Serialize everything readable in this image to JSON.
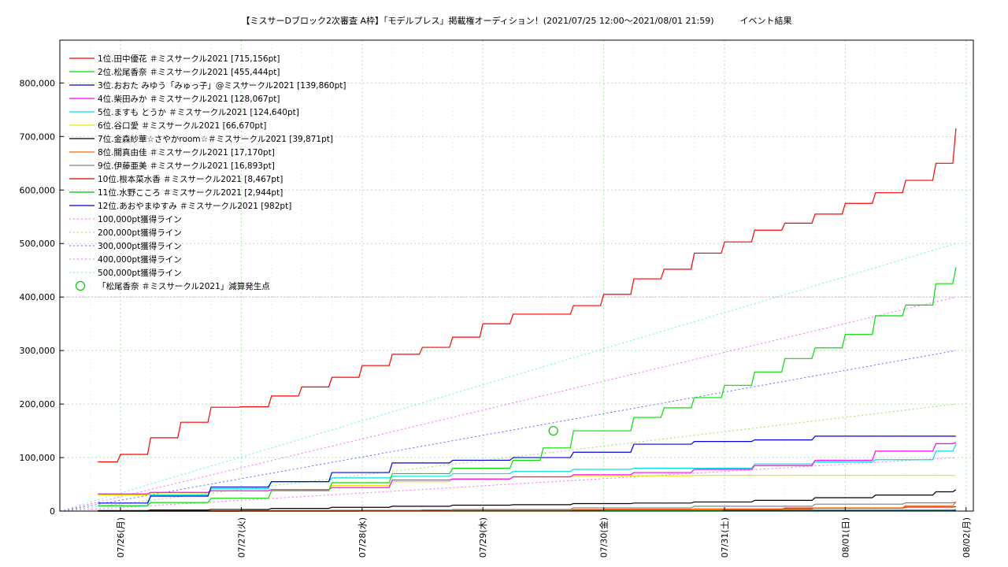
{
  "chart_data": {
    "type": "line",
    "title": "【ミスサーDブロック2次審査 A枠】「モデルプレス」掲載権オーディション！(2021/07/25 12:00〜2021/08/01 21:59)　　　イベント結果",
    "xlabel": "",
    "ylabel": "",
    "x_ticks": [
      "07/26(月)",
      "07/27(火)",
      "07/28(水)",
      "07/29(木)",
      "07/30(金)",
      "07/31(土)",
      "08/01(日)",
      "08/02(月)"
    ],
    "x_range": [
      "2021-07-25 12:00",
      "2021-08-02 02:00"
    ],
    "ylim": [
      0,
      880000
    ],
    "y_ticks": [
      "0",
      "100,000",
      "200,000",
      "300,000",
      "400,000",
      "500,000",
      "600,000",
      "700,000",
      "800,000"
    ],
    "grid": true,
    "legend_position": "top-left",
    "series": [
      {
        "name": "1位.田中優花 ＃ミスサークル2021 [715,156pt]",
        "color": "#ff0000",
        "x": [
          "07/25 19:30",
          "07/26 00:00",
          "07/26 06:00",
          "07/26 12:00",
          "07/26 18:00",
          "07/27 00:00",
          "07/27 06:00",
          "07/27 12:00",
          "07/27 18:00",
          "07/28 00:00",
          "07/28 06:00",
          "07/28 12:00",
          "07/28 18:00",
          "07/29 00:00",
          "07/29 06:00",
          "07/29 12:00",
          "07/29 18:00",
          "07/30 00:00",
          "07/30 06:00",
          "07/30 12:00",
          "07/30 18:00",
          "07/31 00:00",
          "07/31 06:00",
          "07/31 12:00",
          "07/31 18:00",
          "08/01 00:00",
          "08/01 06:00",
          "08/01 12:00",
          "08/01 18:00",
          "08/01 21:59"
        ],
        "values": [
          92000,
          106000,
          137000,
          166000,
          194000,
          195000,
          215000,
          232000,
          250000,
          272000,
          293000,
          306000,
          325000,
          350000,
          368000,
          368000,
          384000,
          405000,
          434000,
          452000,
          482000,
          503000,
          525000,
          538000,
          555000,
          575000,
          595000,
          618000,
          650000,
          715156
        ]
      },
      {
        "name": "2位.松尾香奈 ＃ミスサークル2021 [455,444pt]",
        "color": "#00e000",
        "x": [
          "07/25 19:30",
          "07/26 06:00",
          "07/26 18:00",
          "07/27 06:00",
          "07/27 18:00",
          "07/28 06:00",
          "07/28 18:00",
          "07/29 06:00",
          "07/29 12:00",
          "07/29 18:00",
          "07/30 00:00",
          "07/30 06:00",
          "07/30 12:00",
          "07/30 18:00",
          "07/31 00:00",
          "07/31 06:00",
          "07/31 12:00",
          "07/31 18:00",
          "08/01 00:00",
          "08/01 06:00",
          "08/01 12:00",
          "08/01 18:00",
          "08/01 21:59"
        ],
        "values": [
          10000,
          16000,
          24000,
          38000,
          53000,
          70000,
          80000,
          95000,
          118000,
          150000,
          150000,
          175000,
          193000,
          212000,
          235000,
          260000,
          285000,
          305000,
          330000,
          365000,
          385000,
          425000,
          455444
        ]
      },
      {
        "name": "3位.おおた みゆう「みゅっ子」@ミスサークル2021 [139,860pt]",
        "color": "#0000e0",
        "x": [
          "07/25 19:30",
          "07/26 06:00",
          "07/26 18:00",
          "07/27 06:00",
          "07/27 18:00",
          "07/28 06:00",
          "07/28 18:00",
          "07/29 06:00",
          "07/29 18:00",
          "07/30 06:00",
          "07/30 18:00",
          "07/31 06:00",
          "07/31 18:00",
          "08/01 06:00",
          "08/01 18:00",
          "08/01 21:59"
        ],
        "values": [
          15000,
          28000,
          45000,
          55000,
          72000,
          90000,
          95000,
          100000,
          110000,
          125000,
          130000,
          133000,
          140000,
          140000,
          140000,
          139860
        ]
      },
      {
        "name": "4位.柴田みか ＃ミスサークル2021 [128,067pt]",
        "color": "#ff00ff",
        "x": [
          "07/25 19:30",
          "07/26 06:00",
          "07/26 18:00",
          "07/27 06:00",
          "07/27 18:00",
          "07/28 06:00",
          "07/28 18:00",
          "07/29 06:00",
          "07/29 18:00",
          "07/30 06:00",
          "07/30 18:00",
          "07/31 06:00",
          "07/31 18:00",
          "08/01 06:00",
          "08/01 18:00",
          "08/01 21:59"
        ],
        "values": [
          32000,
          35000,
          38000,
          40000,
          44000,
          58000,
          60000,
          64000,
          68000,
          72000,
          78000,
          85000,
          95000,
          112000,
          126000,
          128067
        ]
      },
      {
        "name": "5位.ますも とうか ＃ミスサークル2021 [124,640pt]",
        "color": "#00e0e0",
        "x": [
          "07/25 19:30",
          "07/26 06:00",
          "07/26 18:00",
          "07/27 06:00",
          "07/27 18:00",
          "07/28 06:00",
          "07/28 18:00",
          "07/29 06:00",
          "07/29 18:00",
          "07/30 06:00",
          "07/30 18:00",
          "07/31 06:00",
          "07/31 18:00",
          "08/01 06:00",
          "08/01 18:00",
          "08/01 21:59"
        ],
        "values": [
          10000,
          30000,
          42000,
          55000,
          62000,
          65000,
          70000,
          74000,
          78000,
          80000,
          80000,
          88000,
          92000,
          96000,
          112000,
          124640
        ]
      },
      {
        "name": "6位.谷口愛 ＃ミスサークル2021 [66,670pt]",
        "color": "#e8e800",
        "x": [
          "07/25 19:30",
          "07/26 06:00",
          "07/26 18:00",
          "07/27 06:00",
          "07/27 18:00",
          "07/28 06:00",
          "07/28 18:00",
          "07/29 06:00",
          "07/29 18:00",
          "07/30 06:00",
          "07/30 18:00",
          "07/31 06:00",
          "07/31 18:00",
          "08/01 06:00",
          "08/01 18:00",
          "08/01 21:59"
        ],
        "values": [
          30000,
          34000,
          38000,
          40000,
          48000,
          55000,
          60000,
          64000,
          66000,
          66000,
          66670,
          66670,
          66670,
          66670,
          66670,
          66670
        ]
      },
      {
        "name": "7位.金森紗華☆さやかroom☆＃ミスサークル2021 [39,871pt]",
        "color": "#000000",
        "x": [
          "07/25 19:30",
          "07/26 06:00",
          "07/26 18:00",
          "07/27 06:00",
          "07/27 18:00",
          "07/28 06:00",
          "07/28 18:00",
          "07/29 06:00",
          "07/29 18:00",
          "07/30 06:00",
          "07/30 18:00",
          "07/31 06:00",
          "07/31 18:00",
          "08/01 06:00",
          "08/01 18:00",
          "08/01 21:59"
        ],
        "values": [
          1000,
          2000,
          3000,
          5000,
          7000,
          9000,
          11000,
          12000,
          14000,
          15000,
          17000,
          20000,
          25000,
          30000,
          36000,
          39871
        ]
      },
      {
        "name": "8位.關真由佳 ＃ミスサークル2021 [17,170pt]",
        "color": "#ff6600",
        "x": [
          "07/25 19:30",
          "07/26 18:00",
          "07/27 18:00",
          "07/28 18:00",
          "07/29 18:00",
          "07/30 18:00",
          "07/31 18:00",
          "08/01 12:00",
          "08/01 21:59"
        ],
        "values": [
          0,
          500,
          1000,
          2000,
          3000,
          4000,
          6000,
          10000,
          17170
        ]
      },
      {
        "name": "9位.伊藤亜美 ＃ミスサークル2021 [16,893pt]",
        "color": "#808080",
        "x": [
          "07/25 19:30",
          "07/26 18:00",
          "07/27 18:00",
          "07/28 18:00",
          "07/29 18:00",
          "07/30 18:00",
          "07/31 18:00",
          "08/01 12:00",
          "08/01 21:59"
        ],
        "values": [
          0,
          500,
          1500,
          3000,
          6000,
          9000,
          13000,
          15500,
          16893
        ]
      },
      {
        "name": "10位.根本菜水香 ＃ミスサークル2021 [8,467pt]",
        "color": "#e00000",
        "x": [
          "07/25 19:30",
          "07/27 00:00",
          "07/28 12:00",
          "07/30 00:00",
          "07/31 12:00",
          "08/01 12:00",
          "08/01 21:59"
        ],
        "values": [
          0,
          1000,
          2000,
          3500,
          5500,
          7500,
          8467
        ]
      },
      {
        "name": "11位.水野こころ ＃ミスサークル2021 [2,944pt]",
        "color": "#00c000",
        "x": [
          "07/25 19:30",
          "07/27 00:00",
          "07/29 00:00",
          "07/31 00:00",
          "08/01 21:59"
        ],
        "values": [
          0,
          500,
          1200,
          2000,
          2944
        ]
      },
      {
        "name": "12位.あおやまゆすみ ＃ミスサークル2021 [982pt]",
        "color": "#0000c0",
        "x": [
          "07/25 19:30",
          "07/28 00:00",
          "07/31 00:00",
          "08/01 21:59"
        ],
        "values": [
          0,
          300,
          600,
          982
        ]
      }
    ],
    "reference_lines": [
      {
        "name": "100,000pt獲得ライン",
        "color": "#ff66ff",
        "from": [
          "07/25 12:00",
          0
        ],
        "to": [
          "08/01 21:59",
          100000
        ]
      },
      {
        "name": "200,000pt獲得ライン",
        "color": "#99dd66",
        "from": [
          "07/25 12:00",
          0
        ],
        "to": [
          "08/01 21:59",
          200000
        ]
      },
      {
        "name": "300,000pt獲得ライン",
        "color": "#6666ff",
        "from": [
          "07/25 12:00",
          0
        ],
        "to": [
          "08/01 21:59",
          300000
        ]
      },
      {
        "name": "400,000pt獲得ライン",
        "color": "#ff66ff",
        "from": [
          "07/25 12:00",
          0
        ],
        "to": [
          "08/01 21:59",
          400000
        ]
      },
      {
        "name": "500,000pt獲得ライン",
        "color": "#66eeee",
        "from": [
          "07/25 12:00",
          0
        ],
        "to": [
          "08/01 21:59",
          500000
        ]
      }
    ],
    "horizontal_line": {
      "value": 400000,
      "color": "#ff99ff"
    },
    "marker": {
      "name": "「松尾香奈 ＃ミスサークル2021」減算発生点",
      "color": "#00cc00",
      "x": "07/29 14:00",
      "y": 150000
    }
  }
}
